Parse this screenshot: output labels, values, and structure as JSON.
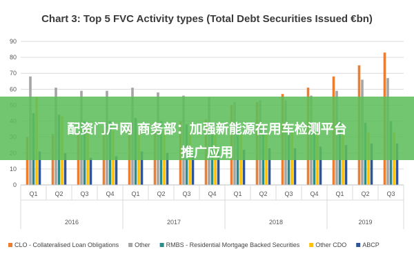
{
  "chart_data": {
    "type": "bar",
    "title": "Chart 3: Top 5 FVC Activity types (Total Debt Securities Issued €bn)",
    "ylim": [
      0,
      90
    ],
    "yticks": [
      0,
      10,
      20,
      30,
      40,
      50,
      60,
      70,
      80,
      90
    ],
    "categories": [
      "Q1",
      "Q2",
      "Q3",
      "Q4",
      "Q1",
      "Q2",
      "Q3",
      "Q4",
      "Q1",
      "Q2",
      "Q3",
      "Q4",
      "Q1",
      "Q2",
      "Q3"
    ],
    "years": [
      {
        "label": "2016",
        "count": 4
      },
      {
        "label": "2017",
        "count": 4
      },
      {
        "label": "2018",
        "count": 4
      },
      {
        "label": "2019",
        "count": 3
      }
    ],
    "series": [
      {
        "name": "CLO - Collateralised Loan Obligations",
        "color": "#ED7D31",
        "values": [
          30,
          32,
          33,
          34,
          36,
          37,
          40,
          41,
          50,
          52,
          57,
          61,
          68,
          75,
          83
        ]
      },
      {
        "name": "Other",
        "color": "#A5A5A5",
        "values": [
          68,
          61,
          59,
          59,
          61,
          58,
          56,
          55,
          52,
          53,
          53,
          56,
          59,
          66,
          67
        ]
      },
      {
        "name": "RMBS - Residential Mortgage Backed Securities",
        "color": "#2E8B8B",
        "values": [
          45,
          44,
          40,
          40,
          42,
          40,
          38,
          37,
          36,
          36,
          38,
          37,
          40,
          39,
          40
        ]
      },
      {
        "name": "Other CDO",
        "color": "#FFC000",
        "values": [
          55,
          43,
          36,
          34,
          34,
          34,
          33,
          32,
          32,
          32,
          33,
          33,
          33,
          33,
          33
        ]
      },
      {
        "name": "ABCP",
        "color": "#2F5597",
        "values": [
          21,
          20,
          17,
          18,
          21,
          20,
          20,
          21,
          22,
          23,
          23,
          24,
          25,
          26,
          26
        ]
      }
    ]
  },
  "overlay": {
    "line1": "配资门户网 商务部：加强新能源在用车检测平台",
    "line2": "推广应用"
  }
}
